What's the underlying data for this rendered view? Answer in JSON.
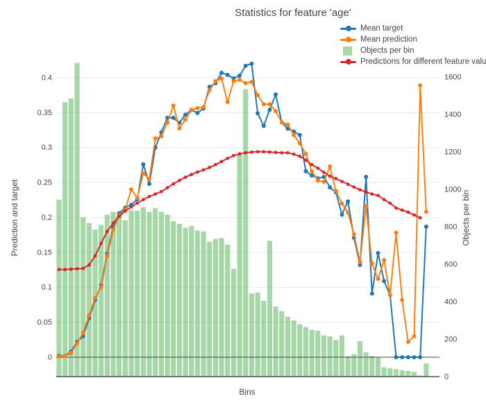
{
  "title": "Statistics for feature 'age'",
  "legend": {
    "items": [
      {
        "label": "Mean target",
        "color": "#1f77b4",
        "marker": "line-dot"
      },
      {
        "label": "Mean prediction",
        "color": "#ff7f0e",
        "marker": "line-dot"
      },
      {
        "label": "Objects per bin",
        "color": "#a6d7a6",
        "marker": "square"
      },
      {
        "label": "Predictions for different feature values",
        "color": "#d62728",
        "marker": "line-dot"
      }
    ]
  },
  "axes": {
    "left": {
      "title": "Prediction and target",
      "tick_labels": [
        "0",
        "0.05",
        "0.1",
        "0.15",
        "0.2",
        "0.25",
        "0.3",
        "0.35",
        "0.4"
      ],
      "tick_values": [
        0,
        0.05,
        0.1,
        0.15,
        0.2,
        0.25,
        0.3,
        0.35,
        0.4
      ],
      "range": [
        -0.0278,
        0.4268
      ]
    },
    "right": {
      "title": "Objects per bin",
      "tick_labels": [
        "0",
        "200",
        "400",
        "600",
        "800",
        "1000",
        "1200",
        "1400",
        "1600"
      ],
      "tick_values": [
        0,
        200,
        400,
        600,
        800,
        1000,
        1200,
        1400,
        1600
      ],
      "range": [
        0,
        1696
      ]
    },
    "x": {
      "title": "Bins"
    }
  },
  "chart_data": {
    "type": "line+bar",
    "x_bins": 62,
    "x": [
      1,
      2,
      3,
      4,
      5,
      6,
      7,
      8,
      9,
      10,
      11,
      12,
      13,
      14,
      15,
      16,
      17,
      18,
      19,
      20,
      21,
      22,
      23,
      24,
      25,
      26,
      27,
      28,
      29,
      30,
      31,
      32,
      33,
      34,
      35,
      36,
      37,
      38,
      39,
      40,
      41,
      42,
      43,
      44,
      45,
      46,
      47,
      48,
      49,
      50,
      51,
      52,
      53,
      54,
      55,
      56,
      57,
      58,
      59,
      60,
      61,
      62
    ],
    "grid": true,
    "legend_position": "top-right",
    "series": [
      {
        "name": "Mean target",
        "axis": "left",
        "type": "line",
        "color": "#1f77b4",
        "values": [
          0.002,
          0.002,
          0.008,
          0.022,
          0.03,
          0.056,
          0.082,
          0.103,
          0.148,
          0.186,
          0.206,
          0.214,
          0.218,
          0.226,
          0.276,
          0.248,
          0.3,
          0.322,
          0.3425,
          0.3425,
          0.3355,
          0.347,
          0.354,
          0.3495,
          0.356,
          0.387,
          0.392,
          0.407,
          0.404,
          0.399,
          0.403,
          0.417,
          0.42,
          0.349,
          0.331,
          0.354,
          0.376,
          0.336,
          0.327,
          0.323,
          0.318,
          0.266,
          0.26,
          0.256,
          0.258,
          0.243,
          0.236,
          0.204,
          0.223,
          0.171,
          0.132,
          0.258,
          0.091,
          0.149,
          0.109,
          0.089,
          0.0,
          0.0,
          0.0,
          0.0,
          0.0,
          0.187
        ]
      },
      {
        "name": "Mean prediction",
        "axis": "left",
        "type": "line",
        "color": "#ff7f0e",
        "values": [
          0.001,
          0.002,
          0.006,
          0.02,
          0.035,
          0.06,
          0.085,
          0.1,
          0.145,
          0.182,
          0.203,
          0.211,
          0.24,
          0.228,
          0.263,
          0.255,
          0.313,
          0.316,
          0.3355,
          0.36,
          0.3275,
          0.34,
          0.354,
          0.3565,
          0.358,
          0.382,
          0.395,
          0.399,
          0.365,
          0.395,
          0.397,
          0.392,
          0.394,
          0.375,
          0.362,
          0.362,
          0.352,
          0.336,
          0.333,
          0.318,
          0.306,
          0.291,
          0.266,
          0.253,
          0.251,
          0.273,
          0.238,
          0.22,
          0.207,
          0.176,
          0.136,
          0.216,
          0.134,
          0.112,
          0.139,
          0.089,
          0.178,
          0.082,
          0.022,
          0.03,
          0.389,
          0.208
        ]
      },
      {
        "name": "Objects per bin",
        "axis": "right",
        "type": "bar",
        "color": "rgba(44,160,44,0.42)",
        "values": [
          945,
          1465,
          1485,
          1675,
          850,
          820,
          785,
          810,
          865,
          880,
          875,
          835,
          890,
          885,
          905,
          880,
          900,
          880,
          865,
          830,
          815,
          795,
          805,
          780,
          775,
          720,
          735,
          740,
          705,
          575,
          1185,
          1535,
          445,
          450,
          405,
          725,
          375,
          350,
          320,
          300,
          280,
          265,
          250,
          245,
          220,
          215,
          195,
          220,
          110,
          120,
          190,
          130,
          110,
          105,
          50,
          45,
          40,
          35,
          30,
          25,
          6,
          70
        ]
      },
      {
        "name": "Predictions for different feature values",
        "axis": "left",
        "type": "line",
        "color": "#d62728",
        "values": [
          0.1255,
          0.1255,
          0.126,
          0.1265,
          0.127,
          0.132,
          0.145,
          0.163,
          0.18,
          0.192,
          0.2015,
          0.209,
          0.215,
          0.2205,
          0.2255,
          0.23,
          0.2335,
          0.237,
          0.2425,
          0.248,
          0.253,
          0.2575,
          0.2615,
          0.265,
          0.268,
          0.2715,
          0.2755,
          0.28,
          0.2845,
          0.2885,
          0.291,
          0.2925,
          0.2935,
          0.294,
          0.294,
          0.2935,
          0.293,
          0.2925,
          0.2925,
          0.2905,
          0.2875,
          0.282,
          0.2755,
          0.2705,
          0.2645,
          0.259,
          0.2555,
          0.2515,
          0.2475,
          0.2435,
          0.2395,
          0.2365,
          0.2335,
          0.2315,
          0.2255,
          0.2205,
          0.2135,
          0.2105,
          0.2075,
          0.2035,
          0.1995,
          null
        ]
      }
    ]
  }
}
